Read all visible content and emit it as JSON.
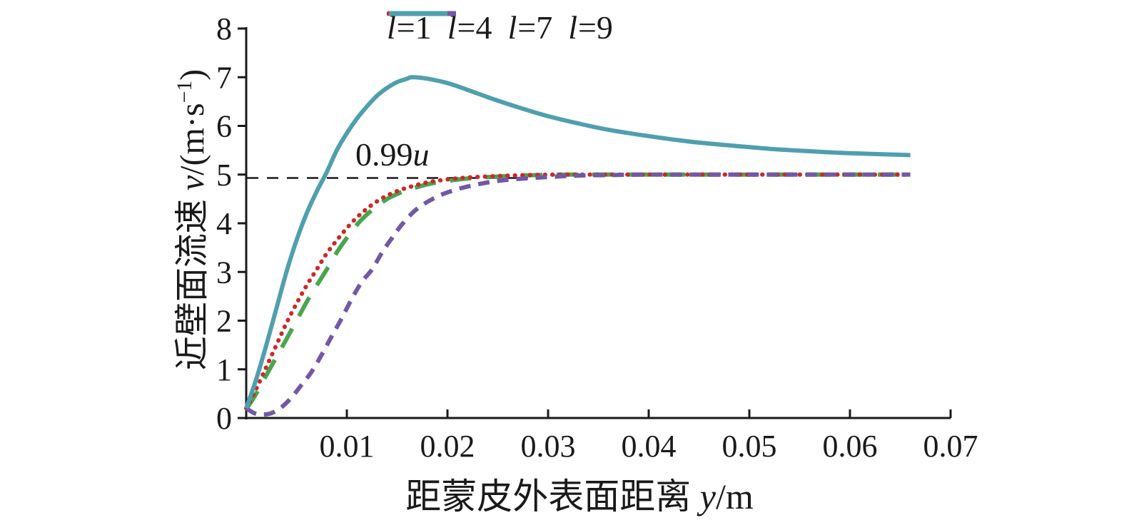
{
  "figure": {
    "background": "#ffffff",
    "axis_color": "#1a1a1a"
  },
  "labels": {
    "y": {
      "prefix": "近壁面流速 ",
      "var": "v",
      "unit_prefix": "/(m·s",
      "sup": "−1",
      "unit_suffix": ")"
    },
    "x": {
      "prefix": "距蒙皮外表面距离 ",
      "var": "y",
      "unit": "/m"
    }
  },
  "annotation": {
    "value": "0.99",
    "var": "u"
  },
  "chart_data": {
    "type": "line",
    "title": "",
    "xlabel": "距蒙皮外表面距离 y/m",
    "ylabel": "近壁面流速 v/(m·s⁻¹)",
    "xlim": [
      0,
      0.07
    ],
    "ylim": [
      0,
      8
    ],
    "xticks": [
      0.01,
      0.02,
      0.03,
      0.04,
      0.05,
      0.06,
      0.07
    ],
    "xtick_labels": [
      "0.01",
      "0.02",
      "0.03",
      "0.04",
      "0.05",
      "0.06",
      "0.07"
    ],
    "yticks": [
      0,
      1,
      2,
      3,
      4,
      5,
      6,
      7,
      8
    ],
    "ytick_labels": [
      "0",
      "1",
      "2",
      "3",
      "4",
      "5",
      "6",
      "7",
      "8"
    ],
    "grid": false,
    "legend_position": "top",
    "reference_line": {
      "value": 4.93,
      "label": "0.99u",
      "color": "#1a1a1a",
      "style": "dashed",
      "x_start": 0,
      "x_end": 0.028
    },
    "series": [
      {
        "name": "l=1",
        "label_var": "l",
        "label_rest": "=1",
        "color": "#4aa54e",
        "style": "long-dash",
        "width": 6,
        "points": [
          [
            0,
            0.18
          ],
          [
            0.001,
            0.5
          ],
          [
            0.002,
            0.88
          ],
          [
            0.003,
            1.25
          ],
          [
            0.004,
            1.62
          ],
          [
            0.005,
            2.0
          ],
          [
            0.006,
            2.38
          ],
          [
            0.007,
            2.72
          ],
          [
            0.008,
            3.05
          ],
          [
            0.009,
            3.4
          ],
          [
            0.01,
            3.7
          ],
          [
            0.011,
            3.97
          ],
          [
            0.012,
            4.18
          ],
          [
            0.013,
            4.35
          ],
          [
            0.014,
            4.5
          ],
          [
            0.015,
            4.6
          ],
          [
            0.016,
            4.68
          ],
          [
            0.018,
            4.8
          ],
          [
            0.02,
            4.87
          ],
          [
            0.022,
            4.92
          ],
          [
            0.025,
            4.96
          ],
          [
            0.028,
            4.985
          ],
          [
            0.032,
            5.0
          ],
          [
            0.04,
            5.0
          ],
          [
            0.05,
            5.0
          ],
          [
            0.06,
            5.0
          ],
          [
            0.066,
            5.0
          ]
        ]
      },
      {
        "name": "l=4",
        "label_var": "l",
        "label_rest": "=4",
        "color": "#cc2929",
        "style": "dotted",
        "width": 6,
        "points": [
          [
            0,
            0.2
          ],
          [
            0.001,
            0.6
          ],
          [
            0.002,
            1.05
          ],
          [
            0.003,
            1.5
          ],
          [
            0.004,
            1.95
          ],
          [
            0.005,
            2.35
          ],
          [
            0.006,
            2.72
          ],
          [
            0.007,
            3.05
          ],
          [
            0.008,
            3.38
          ],
          [
            0.009,
            3.65
          ],
          [
            0.01,
            3.9
          ],
          [
            0.011,
            4.12
          ],
          [
            0.012,
            4.3
          ],
          [
            0.013,
            4.45
          ],
          [
            0.014,
            4.57
          ],
          [
            0.015,
            4.66
          ],
          [
            0.016,
            4.73
          ],
          [
            0.018,
            4.84
          ],
          [
            0.02,
            4.9
          ],
          [
            0.022,
            4.94
          ],
          [
            0.025,
            4.97
          ],
          [
            0.028,
            4.99
          ],
          [
            0.032,
            5.0
          ],
          [
            0.04,
            5.0
          ],
          [
            0.05,
            5.0
          ],
          [
            0.06,
            5.0
          ],
          [
            0.066,
            5.0
          ]
        ]
      },
      {
        "name": "l=7",
        "label_var": "l",
        "label_rest": "=7",
        "color": "#7258a5",
        "style": "dash",
        "width": 6,
        "points": [
          [
            0,
            0.2
          ],
          [
            0.0008,
            0.1
          ],
          [
            0.0016,
            0.07
          ],
          [
            0.0025,
            0.1
          ],
          [
            0.0035,
            0.22
          ],
          [
            0.0045,
            0.42
          ],
          [
            0.0055,
            0.68
          ],
          [
            0.0065,
            0.95
          ],
          [
            0.0075,
            1.3
          ],
          [
            0.0085,
            1.68
          ],
          [
            0.0095,
            2.05
          ],
          [
            0.0105,
            2.45
          ],
          [
            0.0115,
            2.8
          ],
          [
            0.0125,
            3.05
          ],
          [
            0.0135,
            3.4
          ],
          [
            0.0145,
            3.7
          ],
          [
            0.0155,
            3.98
          ],
          [
            0.017,
            4.3
          ],
          [
            0.019,
            4.55
          ],
          [
            0.021,
            4.7
          ],
          [
            0.023,
            4.8
          ],
          [
            0.025,
            4.87
          ],
          [
            0.027,
            4.91
          ],
          [
            0.03,
            4.95
          ],
          [
            0.033,
            4.98
          ],
          [
            0.036,
            4.99
          ],
          [
            0.04,
            5.0
          ],
          [
            0.05,
            5.0
          ],
          [
            0.06,
            5.0
          ],
          [
            0.066,
            5.0
          ]
        ]
      },
      {
        "name": "l=9",
        "label_var": "l",
        "label_rest": "=9",
        "color": "#4f9fae",
        "style": "solid",
        "width": 6,
        "points": [
          [
            0,
            0.2
          ],
          [
            0.001,
            0.8
          ],
          [
            0.002,
            1.5
          ],
          [
            0.003,
            2.25
          ],
          [
            0.004,
            3.0
          ],
          [
            0.005,
            3.65
          ],
          [
            0.006,
            4.2
          ],
          [
            0.007,
            4.65
          ],
          [
            0.008,
            5.05
          ],
          [
            0.009,
            5.5
          ],
          [
            0.01,
            5.85
          ],
          [
            0.011,
            6.15
          ],
          [
            0.012,
            6.4
          ],
          [
            0.013,
            6.62
          ],
          [
            0.014,
            6.78
          ],
          [
            0.015,
            6.9
          ],
          [
            0.016,
            6.97
          ],
          [
            0.0165,
            7.0
          ],
          [
            0.018,
            6.97
          ],
          [
            0.02,
            6.88
          ],
          [
            0.022,
            6.74
          ],
          [
            0.024,
            6.59
          ],
          [
            0.026,
            6.45
          ],
          [
            0.028,
            6.32
          ],
          [
            0.03,
            6.2
          ],
          [
            0.033,
            6.05
          ],
          [
            0.036,
            5.92
          ],
          [
            0.04,
            5.79
          ],
          [
            0.044,
            5.68
          ],
          [
            0.048,
            5.6
          ],
          [
            0.052,
            5.53
          ],
          [
            0.056,
            5.48
          ],
          [
            0.06,
            5.44
          ],
          [
            0.066,
            5.4
          ]
        ]
      }
    ]
  }
}
